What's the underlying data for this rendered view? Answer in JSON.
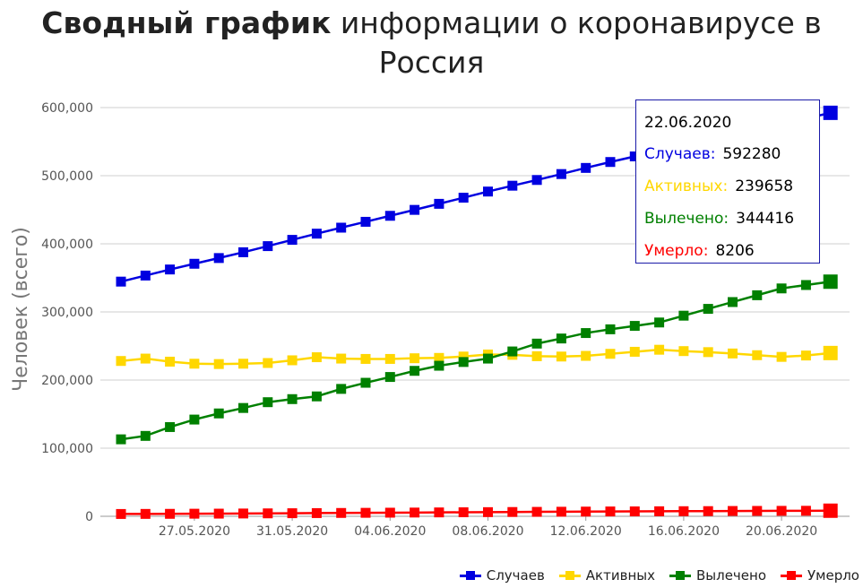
{
  "title": {
    "bold": "Сводный график",
    "rest": " информации о коронавирусе в Россия"
  },
  "chart_data": {
    "type": "line",
    "ylabel": "Человек (всего)",
    "ylim": [
      0,
      600000
    ],
    "yticks": [
      "0",
      "100,000",
      "200,000",
      "300,000",
      "400,000",
      "500,000",
      "600,000"
    ],
    "xticks": [
      "27.05.2020",
      "31.05.2020",
      "04.06.2020",
      "08.06.2020",
      "12.06.2020",
      "16.06.2020",
      "20.06.2020"
    ],
    "x": [
      "24.05.2020",
      "25.05.2020",
      "26.05.2020",
      "27.05.2020",
      "28.05.2020",
      "29.05.2020",
      "30.05.2020",
      "31.05.2020",
      "01.06.2020",
      "02.06.2020",
      "03.06.2020",
      "04.06.2020",
      "05.06.2020",
      "06.06.2020",
      "07.06.2020",
      "08.06.2020",
      "09.06.2020",
      "10.06.2020",
      "11.06.2020",
      "12.06.2020",
      "13.06.2020",
      "14.06.2020",
      "15.06.2020",
      "16.06.2020",
      "17.06.2020",
      "18.06.2020",
      "19.06.2020",
      "20.06.2020",
      "21.06.2020",
      "22.06.2020"
    ],
    "grid": true,
    "legend_position": "bottom-right",
    "series": [
      {
        "name": "Случаев",
        "color": "#0000e0",
        "values": [
          344500,
          353400,
          362300,
          370700,
          379100,
          387600,
          396600,
          405800,
          414900,
          423700,
          432300,
          441100,
          449800,
          458700,
          467700,
          476700,
          485300,
          493700,
          502400,
          511400,
          520100,
          528300,
          537200,
          545500,
          553300,
          561100,
          568800,
          576200,
          583900,
          592280
        ]
      },
      {
        "name": "Активных",
        "color": "#ffd700",
        "values": [
          228000,
          231500,
          227000,
          224000,
          223500,
          224000,
          225000,
          229000,
          233500,
          231500,
          231000,
          231000,
          232000,
          232500,
          234500,
          237500,
          237000,
          235000,
          234500,
          235500,
          238500,
          241500,
          244500,
          242500,
          241000,
          239000,
          236500,
          234000,
          236000,
          239658
        ]
      },
      {
        "name": "Вылечено",
        "color": "#008000",
        "values": [
          113000,
          118000,
          131000,
          142000,
          151000,
          159000,
          167500,
          172000,
          176000,
          187000,
          196000,
          204500,
          213500,
          221000,
          226500,
          231500,
          242000,
          253500,
          261000,
          269000,
          274500,
          279500,
          284500,
          294500,
          304500,
          314500,
          324500,
          334500,
          339500,
          344416
        ]
      },
      {
        "name": "Умерло",
        "color": "#ff0000",
        "values": [
          3400,
          3500,
          3600,
          3800,
          3900,
          4100,
          4300,
          4500,
          4700,
          4900,
          5100,
          5300,
          5500,
          5700,
          5900,
          6100,
          6300,
          6500,
          6700,
          6900,
          7100,
          7200,
          7400,
          7500,
          7600,
          7800,
          7900,
          8000,
          8100,
          8206
        ]
      }
    ]
  },
  "tooltip": {
    "date": "22.06.2020",
    "rows": [
      {
        "label": "Случаев:",
        "value": "592280",
        "color": "#0000e0"
      },
      {
        "label": "Активных:",
        "value": "239658",
        "color": "#ffd700"
      },
      {
        "label": "Вылечено:",
        "value": "344416",
        "color": "#008000"
      },
      {
        "label": "Умерло:",
        "value": "8206",
        "color": "#ff0000"
      }
    ]
  }
}
